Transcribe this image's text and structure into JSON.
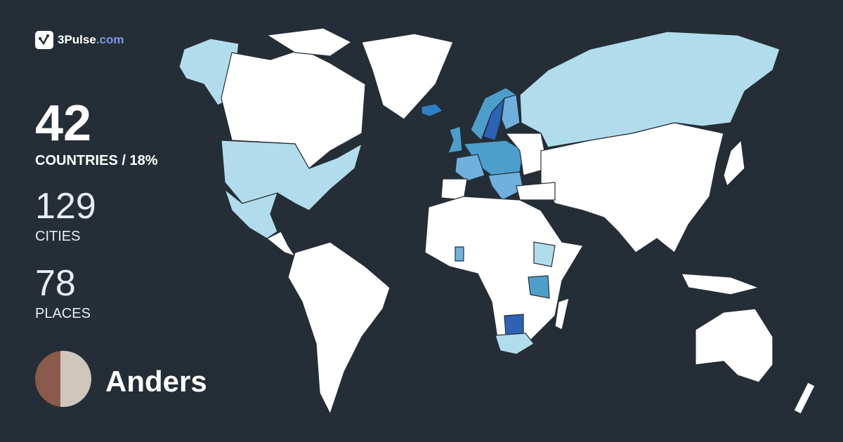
{
  "brand": {
    "name": "3Pulse",
    "domain": ".com",
    "logo_icon": "check-pulse-icon"
  },
  "stats": {
    "countries": {
      "value": "42",
      "label": "COUNTRIES / 18%"
    },
    "cities": {
      "value": "129",
      "label": "CITIES"
    },
    "places": {
      "value": "78",
      "label": "PLACES"
    }
  },
  "user": {
    "name": "Anders"
  },
  "colors": {
    "background": "#252e36",
    "unvisited": "#ffffff",
    "visited_light": "#b1dcec",
    "visited_medium": "#4d9fcb",
    "visited_dark": "#2d62b5",
    "brand_accent": "#7d95e8"
  }
}
